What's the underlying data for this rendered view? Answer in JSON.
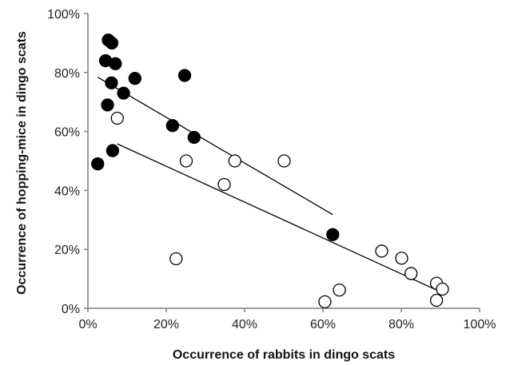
{
  "chart_data": {
    "type": "scatter",
    "title": "",
    "xlabel": "Occurrence of rabbits in dingo scats",
    "ylabel": "Occurrence of hopping-mice in dingo scats",
    "xlim": [
      0,
      100
    ],
    "ylim": [
      0,
      100
    ],
    "x_ticks": [
      "0%",
      "20%",
      "40%",
      "60%",
      "80%",
      "100%"
    ],
    "y_ticks": [
      "0%",
      "20%",
      "40%",
      "60%",
      "80%",
      "100%"
    ],
    "grid": false,
    "legend": "none",
    "series": [
      {
        "marker": "filled-circle",
        "color": "#000000",
        "points": [
          [
            2.5,
            49
          ],
          [
            4.5,
            84
          ],
          [
            5.2,
            91
          ],
          [
            6.1,
            90
          ],
          [
            7,
            83
          ],
          [
            6,
            76.5
          ],
          [
            5,
            69
          ],
          [
            9.1,
            73
          ],
          [
            12,
            78
          ],
          [
            6.3,
            53.5
          ],
          [
            21.6,
            62
          ],
          [
            24.7,
            79
          ],
          [
            27.1,
            58
          ],
          [
            62.5,
            25
          ]
        ],
        "trendline": [
          [
            2.5,
            78.4
          ],
          [
            62.5,
            31.8
          ]
        ]
      },
      {
        "marker": "open-circle",
        "color": "#000000",
        "points": [
          [
            7.5,
            64.5
          ],
          [
            25.1,
            50
          ],
          [
            22.5,
            16.8
          ],
          [
            34.8,
            42
          ],
          [
            37.5,
            50
          ],
          [
            50.1,
            50
          ],
          [
            60.5,
            2.2
          ],
          [
            64.2,
            6.2
          ],
          [
            75,
            19.4
          ],
          [
            80.1,
            17
          ],
          [
            82.5,
            11.8
          ],
          [
            89,
            8.5
          ],
          [
            89,
            2.7
          ],
          [
            90.5,
            6.5
          ]
        ],
        "trendline": [
          [
            7.5,
            55.8
          ],
          [
            90.5,
            5.3
          ]
        ]
      }
    ]
  }
}
